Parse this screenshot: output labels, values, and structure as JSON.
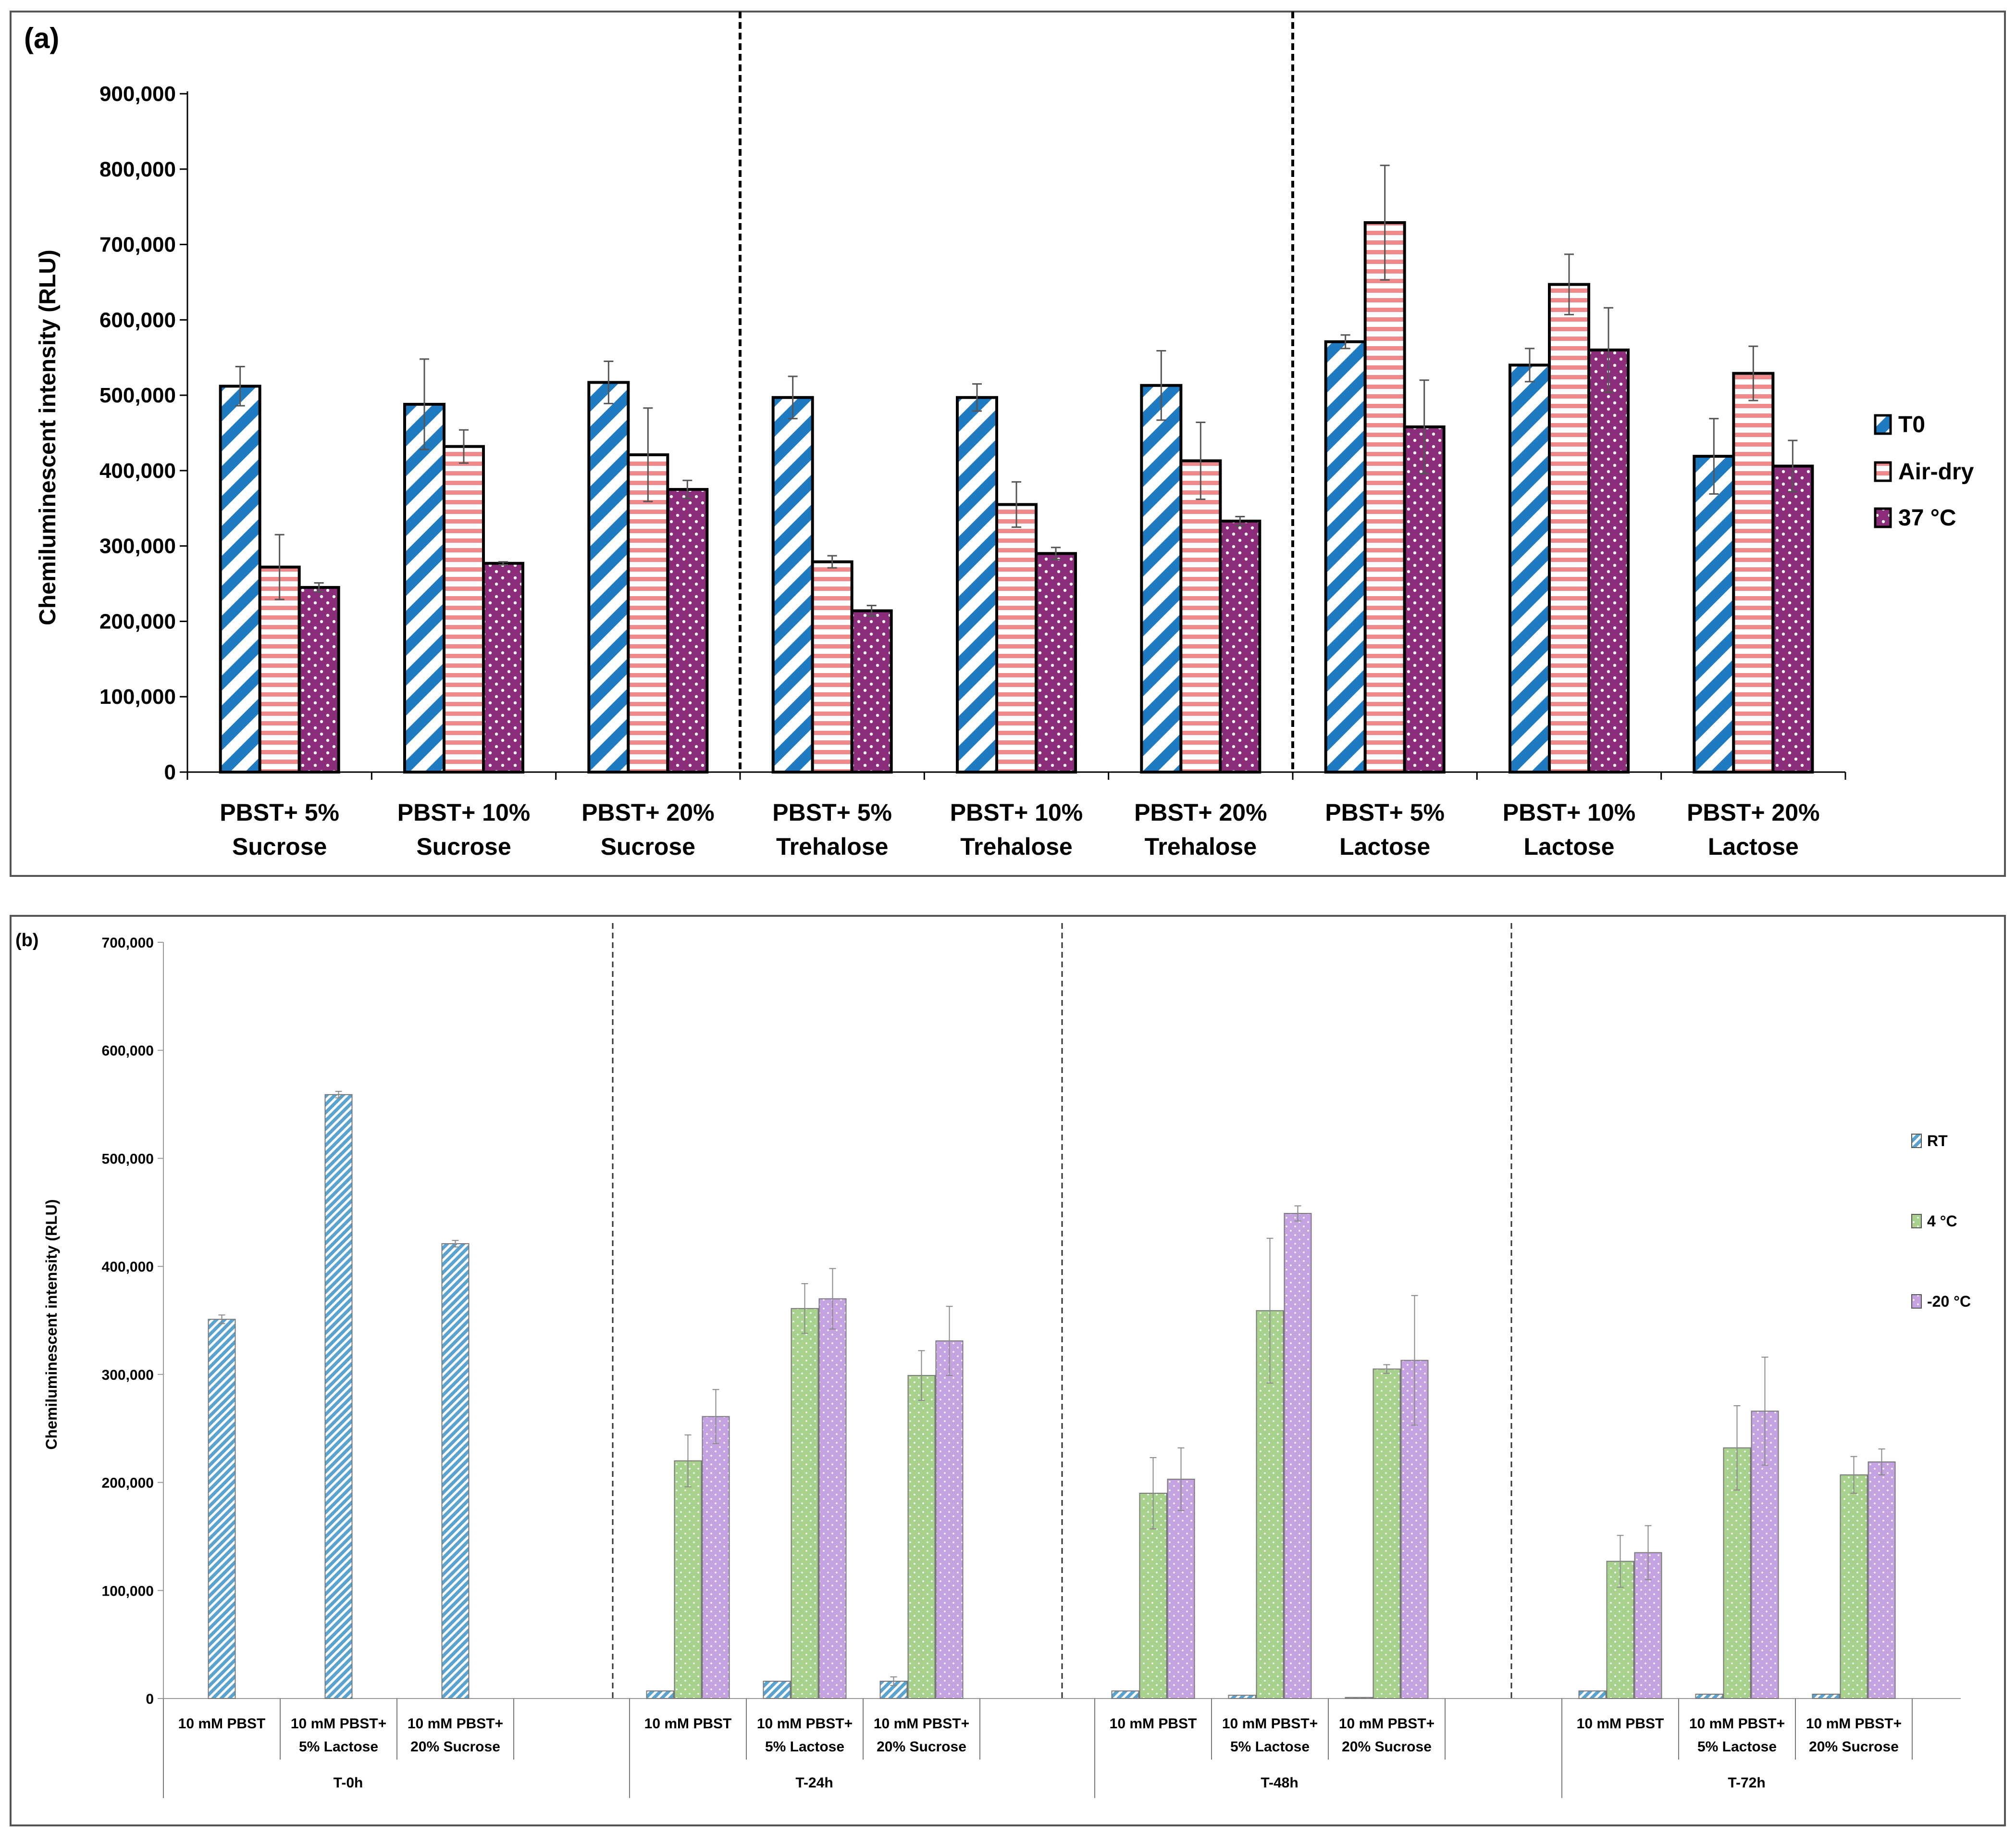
{
  "chart_data": [
    {
      "panel": "(a)",
      "type": "bar",
      "ylabel": "Chemiluminescent intensity (RLU)",
      "ylim": [
        0,
        900000
      ],
      "ytick_step": 100000,
      "yticks": [
        "0",
        "100,000",
        "200,000",
        "300,000",
        "400,000",
        "500,000",
        "600,000",
        "700,000",
        "800,000",
        "900,000"
      ],
      "categories": [
        [
          "PBST+ 5%",
          "Sucrose"
        ],
        [
          "PBST+ 10%",
          "Sucrose"
        ],
        [
          "PBST+ 20%",
          "Sucrose"
        ],
        [
          "PBST+ 5%",
          "Trehalose"
        ],
        [
          "PBST+ 10%",
          "Trehalose"
        ],
        [
          "PBST+ 20%",
          "Trehalose"
        ],
        [
          "PBST+ 5%",
          "Lactose"
        ],
        [
          "PBST+ 10%",
          "Lactose"
        ],
        [
          "PBST+ 20%",
          "Lactose"
        ]
      ],
      "series": [
        {
          "name": "T0",
          "color": "#1f7bc1",
          "values": [
            512000,
            488000,
            517000,
            497000,
            497000,
            513000,
            571000,
            540000,
            419000
          ],
          "errors": [
            26000,
            60000,
            28000,
            28000,
            18000,
            46000,
            9000,
            22000,
            50000
          ]
        },
        {
          "name": "Air-dry",
          "color": "#f08a8a",
          "values": [
            272000,
            432000,
            421000,
            279000,
            355000,
            413000,
            729000,
            647000,
            529000
          ],
          "errors": [
            43000,
            22000,
            62000,
            8000,
            30000,
            51000,
            76000,
            40000,
            36000
          ]
        },
        {
          "name": "37 °C",
          "color": "#8b2d7a",
          "values": [
            245000,
            277000,
            375000,
            214000,
            290000,
            333000,
            458000,
            560000,
            406000
          ],
          "errors": [
            6000,
            2000,
            12000,
            7000,
            8000,
            6000,
            62000,
            56000,
            34000
          ]
        }
      ],
      "dividers_after_category": [
        2,
        5
      ],
      "legend": "right"
    },
    {
      "panel": "(b)",
      "type": "bar",
      "ylabel": "Chemiluminescent intensity (RLU)",
      "ylim": [
        0,
        700000
      ],
      "ytick_step": 100000,
      "yticks": [
        "0",
        "100,000",
        "200,000",
        "300,000",
        "400,000",
        "500,000",
        "600,000",
        "700,000"
      ],
      "groups": [
        "T-0h",
        "T-24h",
        "T-48h",
        "T-72h"
      ],
      "subcategories": [
        [
          "10 mM PBST"
        ],
        [
          "10 mM PBST+",
          "5% Lactose"
        ],
        [
          "10 mM PBST+",
          "20% Sucrose"
        ]
      ],
      "series": [
        {
          "name": "RT",
          "color": "#5ba3cf",
          "values": [
            351000,
            559000,
            421000,
            7000,
            16000,
            16000,
            7000,
            3000,
            1000,
            7000,
            4000,
            4000
          ],
          "errors": [
            4000,
            3000,
            3000,
            0,
            0,
            4000,
            0,
            0,
            0,
            0,
            0,
            0
          ]
        },
        {
          "name": "4 °C",
          "color": "#a9d18e",
          "values": [
            null,
            null,
            null,
            220000,
            361000,
            299000,
            190000,
            359000,
            305000,
            127000,
            232000,
            207000
          ],
          "errors": [
            null,
            null,
            null,
            24000,
            23000,
            23000,
            33000,
            67000,
            4000,
            24000,
            39000,
            17000
          ]
        },
        {
          "name": "-20 °C",
          "color": "#c5a3e0",
          "values": [
            null,
            null,
            null,
            261000,
            370000,
            331000,
            203000,
            449000,
            313000,
            135000,
            266000,
            219000
          ],
          "errors": [
            null,
            null,
            null,
            25000,
            28000,
            32000,
            29000,
            7000,
            60000,
            25000,
            50000,
            12000
          ]
        }
      ],
      "legend": "right"
    }
  ]
}
